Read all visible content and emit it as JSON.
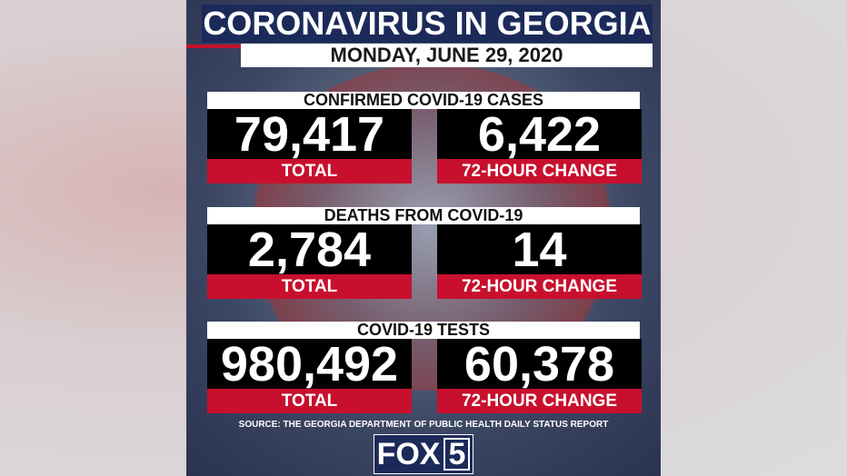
{
  "header": {
    "title": "CORONAVIRUS IN GEORGIA",
    "date": "MONDAY, JUNE 29, 2020"
  },
  "sections": [
    {
      "heading": "CONFIRMED COVID-19 CASES",
      "total": {
        "value": "79,417",
        "label": "TOTAL"
      },
      "change": {
        "value": "6,422",
        "label": "72-HOUR CHANGE"
      }
    },
    {
      "heading": "DEATHS FROM COVID-19",
      "total": {
        "value": "2,784",
        "label": "TOTAL"
      },
      "change": {
        "value": "14",
        "label": "72-HOUR CHANGE"
      }
    },
    {
      "heading": "COVID-19 TESTS",
      "total": {
        "value": "980,492",
        "label": "TOTAL"
      },
      "change": {
        "value": "60,378",
        "label": "72-HOUR CHANGE"
      }
    }
  ],
  "source": "SOURCE: THE GEORGIA DEPARTMENT OF PUBLIC HEALTH DAILY STATUS REPORT",
  "logo": {
    "name": "FOX",
    "number": "5"
  }
}
